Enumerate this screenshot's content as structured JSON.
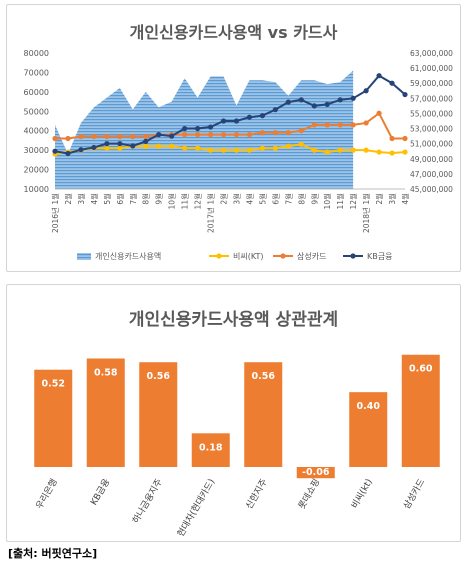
{
  "source": "[출처: 버핏연구소]",
  "colors": {
    "area": "#9dc3e6",
    "area_stripe": "#5b9bd5",
    "bc": "#ffc000",
    "samsung": "#ed7d31",
    "kb": "#264478",
    "bar": "#ed7d31"
  },
  "chart_data": [
    {
      "type": "line",
      "title": "개인신용카드사용액 vs 카드사",
      "x": [
        "2016년 1월",
        "2월",
        "3월",
        "4월",
        "5월",
        "6월",
        "7월",
        "8월",
        "9월",
        "10월",
        "11월",
        "12월",
        "2017년 1월",
        "2월",
        "3월",
        "4월",
        "5월",
        "6월",
        "7월",
        "8월",
        "9월",
        "10월",
        "11월",
        "12월",
        "2018년 1월",
        "2월",
        "3월",
        "4월"
      ],
      "x_tick_labels": [
        "2016년 1월",
        "2월",
        "3월",
        "4월",
        "5월",
        "6월",
        "7월",
        "8월",
        "9월",
        "10월",
        "11월",
        "12월",
        "2017년 1월",
        "2월",
        "3월",
        "4월",
        "5월",
        "6월",
        "7월",
        "8월",
        "9월",
        "10월",
        "11월",
        "12월",
        "2018년 1월",
        "2월",
        "3월",
        "4월"
      ],
      "ylim_left": [
        10000,
        80000
      ],
      "yticks_left": [
        "10000",
        "20000",
        "30000",
        "40000",
        "50000",
        "60000",
        "70000",
        "80000"
      ],
      "ylim_right": [
        45000000,
        63000000
      ],
      "yticks_right": [
        "45,000,000",
        "47,000,000",
        "49,000,000",
        "51,000,000",
        "53,000,000",
        "55,000,000",
        "57,000,000",
        "59,000,000",
        "61,000,000",
        "63,000,000"
      ],
      "legend_position": "bottom",
      "series": [
        {
          "name": "개인신용카드사용액",
          "type": "area",
          "axis": "left",
          "values": [
            43000,
            28000,
            44000,
            52000,
            57000,
            62000,
            51000,
            60000,
            52000,
            55000,
            67000,
            57000,
            68000,
            68000,
            53000,
            66000,
            66000,
            65000,
            58000,
            66000,
            66000,
            64000,
            65000,
            71000,
            null,
            null,
            null,
            null
          ]
        },
        {
          "name": "비씨(KT)",
          "type": "line",
          "axis": "left",
          "values": [
            28000,
            29000,
            30000,
            31000,
            31000,
            31000,
            32000,
            32000,
            32000,
            32000,
            31000,
            31000,
            30000,
            30000,
            30000,
            30000,
            31000,
            31000,
            32000,
            33000,
            30000,
            29000,
            30000,
            30000,
            30000,
            29000,
            28500,
            29000
          ]
        },
        {
          "name": "삼성카드",
          "type": "line",
          "axis": "left",
          "values": [
            36000,
            36000,
            37000,
            37000,
            37000,
            37000,
            37000,
            37000,
            38000,
            38000,
            38000,
            38000,
            38000,
            38000,
            38000,
            38000,
            39000,
            39000,
            39000,
            40000,
            43000,
            43000,
            43000,
            43000,
            44000,
            49000,
            36000,
            36000
          ]
        },
        {
          "name": "KB금융",
          "type": "line",
          "axis": "right",
          "values": [
            50000000,
            49700000,
            50200000,
            50500000,
            51000000,
            51000000,
            50700000,
            51300000,
            52200000,
            52000000,
            53000000,
            53000000,
            53200000,
            54000000,
            54000000,
            54500000,
            54700000,
            55500000,
            56500000,
            56800000,
            56000000,
            56200000,
            56800000,
            57000000,
            58000000,
            60000000,
            59000000,
            57500000
          ]
        }
      ]
    },
    {
      "type": "bar",
      "title": "개인신용카드사용액 상관관계",
      "categories": [
        "우리은행",
        "KB금융",
        "하나금융지주",
        "현대차(현대카드)",
        "신한지주",
        "롯데쇼핑",
        "비씨(kt)",
        "삼성카드"
      ],
      "values": [
        0.52,
        0.58,
        0.56,
        0.18,
        0.56,
        -0.06,
        0.4,
        0.6
      ],
      "value_labels": [
        "0.52",
        "0.58",
        "0.56",
        "0.18",
        "0.56",
        "-0.06",
        "0.40",
        "0.60"
      ],
      "ylim": [
        -0.1,
        0.65
      ],
      "grid": false
    }
  ]
}
